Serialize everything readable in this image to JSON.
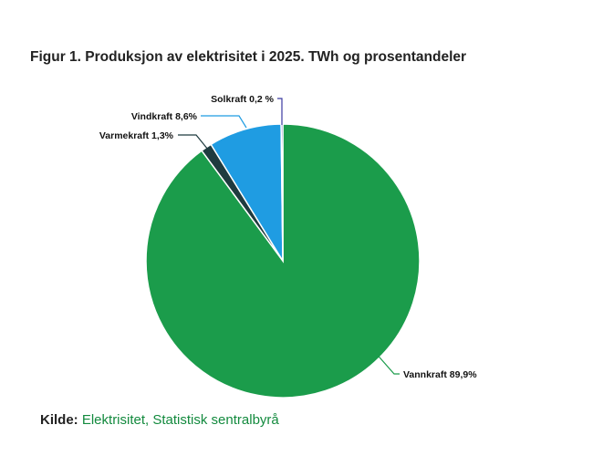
{
  "chart_data": {
    "type": "pie",
    "title": "Figur 1. Produksjon av elektrisitet i 2025. TWh og prosentandeler",
    "slices": [
      {
        "name": "Vannkraft",
        "value": 89.9,
        "label": "Vannkraft 89,9%",
        "color": "#1b9c4b"
      },
      {
        "name": "Varmekraft",
        "value": 1.3,
        "label": "Varmekraft 1,3%",
        "color": "#1f3b3f"
      },
      {
        "name": "Vindkraft",
        "value": 8.6,
        "label": "Vindkraft 8,6%",
        "color": "#1f9ce2"
      },
      {
        "name": "Solkraft",
        "value": 0.2,
        "label": "Solkraft 0,2 %",
        "color": "#3b3aa0"
      }
    ],
    "start_angle": "top",
    "direction": "clockwise",
    "legend": "none"
  },
  "source": {
    "label": "Kilde:",
    "text": "Elektrisitet, Statistisk sentralbyrå"
  }
}
